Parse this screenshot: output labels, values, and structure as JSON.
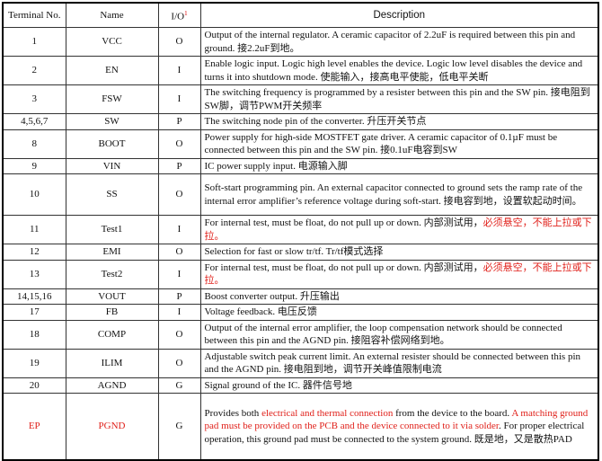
{
  "header": {
    "terminal": "Terminal No.",
    "name": "Name",
    "io": "I/O",
    "io_sup": "1",
    "description": "Description"
  },
  "colors": {
    "highlight": "#e0201a"
  },
  "rows": [
    {
      "no": "1",
      "name": "VCC",
      "io": "O",
      "h": 31,
      "desc": [
        {
          "t": "Output of the internal regulator. A ceramic capacitor of 2.2uF is required between this pin and ground.  接2.2uF到地。"
        }
      ]
    },
    {
      "no": "2",
      "name": "EN",
      "io": "I",
      "h": 31,
      "desc": [
        {
          "t": "Enable logic input. Logic high level enables the device. Logic low level disables the device and turns it into shutdown mode.  使能输入，接高电平使能，低电平关断"
        }
      ]
    },
    {
      "no": "3",
      "name": "FSW",
      "io": "I",
      "h": 30,
      "desc": [
        {
          "t": "The switching frequency is programmed by a resister between this pin and the SW pin.  接电阻到SW脚，调节PWM开关频率"
        }
      ]
    },
    {
      "no": "4,5,6,7",
      "name": "SW",
      "io": "P",
      "h": 16,
      "desc": [
        {
          "t": "The switching node pin of the converter.  升压开关节点"
        }
      ]
    },
    {
      "no": "8",
      "name": "BOOT",
      "io": "O",
      "h": 31,
      "desc": [
        {
          "t": "Power supply for high-side MOSTFET gate driver. A ceramic capacitor of 0.1µF must be connected between this pin and the SW pin.  接0.1uF电容到SW"
        }
      ]
    },
    {
      "no": "9",
      "name": "VIN",
      "io": "P",
      "h": 16,
      "desc": [
        {
          "t": "IC power supply input.  电源输入脚"
        }
      ]
    },
    {
      "no": "10",
      "name": "SS",
      "io": "O",
      "h": 46,
      "desc": [
        {
          "t": "Soft-start programming pin. An external capacitor connected to ground sets the ramp rate of the internal error amplifier’s reference voltage during soft-start.  接电容到地，设置软起动时间。"
        }
      ]
    },
    {
      "no": "11",
      "name": "Test1",
      "io": "I",
      "h": 31,
      "desc": [
        {
          "t": "For internal test, must be float, do not pull up or down.  内部测试用，"
        },
        {
          "t": "必须悬空，不能上拉或下拉。",
          "red": true
        }
      ]
    },
    {
      "no": "12",
      "name": "EMI",
      "io": "O",
      "h": 16,
      "desc": [
        {
          "t": "Selection for fast or slow tr/tf.  Tr/tf模式选择"
        }
      ]
    },
    {
      "no": "13",
      "name": "Test2",
      "io": "I",
      "h": 31,
      "desc": [
        {
          "t": "For internal test, must be float, do not pull up or down.  内部测试用，"
        },
        {
          "t": "必须悬空，不能上拉或下拉。",
          "red": true
        }
      ]
    },
    {
      "no": "14,15,16",
      "name": "VOUT",
      "io": "P",
      "h": 16,
      "desc": [
        {
          "t": "Boost converter output.  升压输出"
        }
      ]
    },
    {
      "no": "17",
      "name": "FB",
      "io": "I",
      "h": 15,
      "desc": [
        {
          "t": "Voltage feedback.  电压反馈"
        }
      ]
    },
    {
      "no": "18",
      "name": "COMP",
      "io": "O",
      "h": 31,
      "desc": [
        {
          "t": "Output of the internal error amplifier, the loop compensation network should be connected between this pin and the AGND pin.  接阻容补偿网络到地。"
        }
      ]
    },
    {
      "no": "19",
      "name": "ILIM",
      "io": "O",
      "h": 31,
      "desc": [
        {
          "t": "Adjustable switch peak current limit. An external resister should be connected between this pin and the AGND pin.  接电阻到地，调节开关峰值限制电流"
        }
      ]
    },
    {
      "no": "20",
      "name": "AGND",
      "io": "G",
      "h": 15,
      "desc": [
        {
          "t": "Signal ground of the IC.  器件信号地"
        }
      ]
    },
    {
      "no": "EP",
      "name": "PGND",
      "io": "G",
      "h": 74,
      "red": true,
      "desc": [
        {
          "t": "Provides both "
        },
        {
          "t": "electrical and thermal connection",
          "red": true
        },
        {
          "t": " from the device to the board. "
        },
        {
          "t": "A matching ground pad must be provided on the PCB and the device connected to it via solder",
          "red": true
        },
        {
          "t": ". For proper electrical operation, this ground pad must be connected to the system ground.  既是地，又是散热PAD"
        }
      ]
    }
  ]
}
